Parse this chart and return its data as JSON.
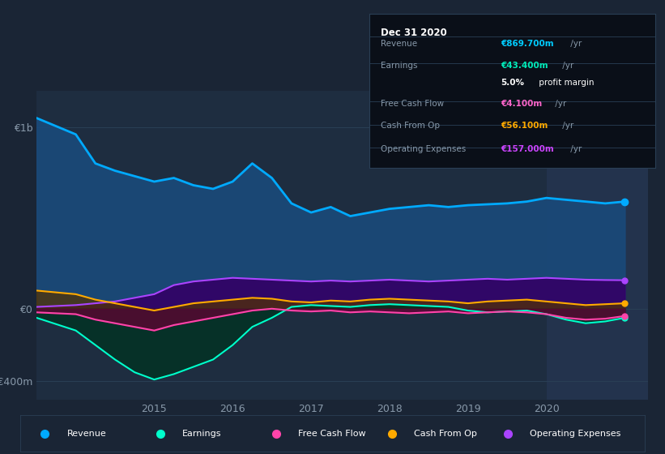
{
  "bg_color": "#1a2535",
  "plot_bg_color": "#1e2d40",
  "grid_color": "#2a3f55",
  "y_label_color": "#8899aa",
  "x_label_color": "#8899aa",
  "title_box": {
    "date": "Dec 31 2020",
    "rows": [
      {
        "label": "Revenue",
        "value": "€869.700m /yr",
        "value_color": "#00ccff"
      },
      {
        "label": "Earnings",
        "value": "€43.400m /yr",
        "value_color": "#00eebb"
      },
      {
        "label": "",
        "value": "5.0% profit margin",
        "value_color": "#ffffff"
      },
      {
        "label": "Free Cash Flow",
        "value": "€4.100m /yr",
        "value_color": "#ff66cc"
      },
      {
        "label": "Cash From Op",
        "value": "€56.100m /yr",
        "value_color": "#ffaa00"
      },
      {
        "label": "Operating Expenses",
        "value": "€157.000m /yr",
        "value_color": "#cc44ff"
      }
    ]
  },
  "x_ticks": [
    2014.0,
    2015.0,
    2016.0,
    2017.0,
    2018.0,
    2019.0,
    2020.0
  ],
  "x_tick_labels": [
    "",
    "2015",
    "2016",
    "2017",
    "2018",
    "2019",
    "2020"
  ],
  "y_ticks": [
    -400000000,
    0,
    1000000000
  ],
  "y_tick_labels": [
    "-€400m",
    "€0",
    "€1b"
  ],
  "ylim": [
    -500000000,
    1200000000
  ],
  "xlim": [
    2013.5,
    2021.3
  ],
  "series": {
    "revenue": {
      "color": "#00aaff",
      "fill_color": "#1a4a7a",
      "linewidth": 2.0,
      "x": [
        2013.5,
        2014.0,
        2014.25,
        2014.5,
        2014.75,
        2015.0,
        2015.25,
        2015.5,
        2015.75,
        2016.0,
        2016.25,
        2016.5,
        2016.75,
        2017.0,
        2017.25,
        2017.5,
        2017.75,
        2018.0,
        2018.25,
        2018.5,
        2018.75,
        2019.0,
        2019.25,
        2019.5,
        2019.75,
        2020.0,
        2020.25,
        2020.5,
        2020.75,
        2021.0
      ],
      "y": [
        1050000000,
        960000000,
        800000000,
        760000000,
        730000000,
        700000000,
        720000000,
        680000000,
        660000000,
        700000000,
        800000000,
        720000000,
        580000000,
        530000000,
        560000000,
        510000000,
        530000000,
        550000000,
        560000000,
        570000000,
        560000000,
        570000000,
        575000000,
        580000000,
        590000000,
        610000000,
        600000000,
        590000000,
        580000000,
        590000000
      ]
    },
    "earnings": {
      "color": "#00ffcc",
      "fill_color": "#003322",
      "linewidth": 1.5,
      "x": [
        2013.5,
        2014.0,
        2014.25,
        2014.5,
        2014.75,
        2015.0,
        2015.25,
        2015.5,
        2015.75,
        2016.0,
        2016.25,
        2016.5,
        2016.75,
        2017.0,
        2017.25,
        2017.5,
        2017.75,
        2018.0,
        2018.25,
        2018.5,
        2018.75,
        2019.0,
        2019.25,
        2019.5,
        2019.75,
        2020.0,
        2020.25,
        2020.5,
        2020.75,
        2021.0
      ],
      "y": [
        -50000000,
        -120000000,
        -200000000,
        -280000000,
        -350000000,
        -390000000,
        -360000000,
        -320000000,
        -280000000,
        -200000000,
        -100000000,
        -50000000,
        10000000,
        20000000,
        15000000,
        10000000,
        20000000,
        25000000,
        20000000,
        15000000,
        10000000,
        -10000000,
        -20000000,
        -15000000,
        -10000000,
        -30000000,
        -60000000,
        -80000000,
        -70000000,
        -50000000
      ]
    },
    "free_cash_flow": {
      "color": "#ff44aa",
      "fill_color": "#660033",
      "linewidth": 1.5,
      "x": [
        2013.5,
        2014.0,
        2014.25,
        2014.5,
        2014.75,
        2015.0,
        2015.25,
        2015.5,
        2015.75,
        2016.0,
        2016.25,
        2016.5,
        2016.75,
        2017.0,
        2017.25,
        2017.5,
        2017.75,
        2018.0,
        2018.25,
        2018.5,
        2018.75,
        2019.0,
        2019.25,
        2019.5,
        2019.75,
        2020.0,
        2020.25,
        2020.5,
        2020.75,
        2021.0
      ],
      "y": [
        -20000000,
        -30000000,
        -60000000,
        -80000000,
        -100000000,
        -120000000,
        -90000000,
        -70000000,
        -50000000,
        -30000000,
        -10000000,
        0,
        -10000000,
        -15000000,
        -10000000,
        -20000000,
        -15000000,
        -20000000,
        -25000000,
        -20000000,
        -15000000,
        -25000000,
        -20000000,
        -15000000,
        -20000000,
        -30000000,
        -50000000,
        -60000000,
        -55000000,
        -40000000
      ]
    },
    "cash_from_op": {
      "color": "#ffaa00",
      "fill_color": "#553300",
      "linewidth": 1.5,
      "x": [
        2013.5,
        2014.0,
        2014.25,
        2014.5,
        2014.75,
        2015.0,
        2015.25,
        2015.5,
        2015.75,
        2016.0,
        2016.25,
        2016.5,
        2016.75,
        2017.0,
        2017.25,
        2017.5,
        2017.75,
        2018.0,
        2018.25,
        2018.5,
        2018.75,
        2019.0,
        2019.25,
        2019.5,
        2019.75,
        2020.0,
        2020.25,
        2020.5,
        2020.75,
        2021.0
      ],
      "y": [
        100000000,
        80000000,
        50000000,
        30000000,
        10000000,
        -10000000,
        10000000,
        30000000,
        40000000,
        50000000,
        60000000,
        55000000,
        40000000,
        35000000,
        45000000,
        40000000,
        50000000,
        55000000,
        50000000,
        45000000,
        40000000,
        30000000,
        40000000,
        45000000,
        50000000,
        40000000,
        30000000,
        20000000,
        25000000,
        30000000
      ]
    },
    "operating_expenses": {
      "color": "#aa44ff",
      "fill_color": "#330066",
      "linewidth": 1.5,
      "x": [
        2013.5,
        2014.0,
        2014.25,
        2014.5,
        2014.75,
        2015.0,
        2015.25,
        2015.5,
        2015.75,
        2016.0,
        2016.25,
        2016.5,
        2016.75,
        2017.0,
        2017.25,
        2017.5,
        2017.75,
        2018.0,
        2018.25,
        2018.5,
        2018.75,
        2019.0,
        2019.25,
        2019.5,
        2019.75,
        2020.0,
        2020.25,
        2020.5,
        2020.75,
        2021.0
      ],
      "y": [
        10000000,
        20000000,
        30000000,
        40000000,
        60000000,
        80000000,
        130000000,
        150000000,
        160000000,
        170000000,
        165000000,
        160000000,
        155000000,
        150000000,
        155000000,
        150000000,
        155000000,
        160000000,
        155000000,
        150000000,
        155000000,
        160000000,
        165000000,
        160000000,
        165000000,
        170000000,
        165000000,
        160000000,
        158000000,
        157000000
      ]
    }
  },
  "legend": [
    {
      "label": "Revenue",
      "color": "#00aaff"
    },
    {
      "label": "Earnings",
      "color": "#00ffcc"
    },
    {
      "label": "Free Cash Flow",
      "color": "#ff44aa"
    },
    {
      "label": "Cash From Op",
      "color": "#ffaa00"
    },
    {
      "label": "Operating Expenses",
      "color": "#aa44ff"
    }
  ],
  "highlight_x_start": 2020.0,
  "highlight_x_end": 2021.3,
  "highlight_color": "#243550",
  "info_box": {
    "bg_color": "#0a0f18",
    "border_color": "#2a3f55",
    "title_color": "#ffffff",
    "label_color": "#8899aa",
    "sep_color": "#2a3f55"
  }
}
